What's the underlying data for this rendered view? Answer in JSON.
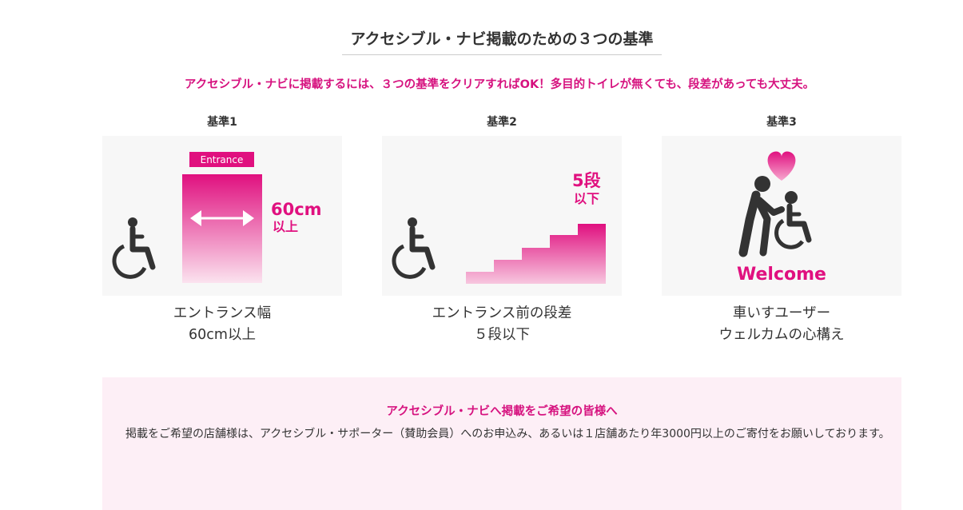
{
  "section": {
    "title": "アクセシブル・ナビ掲載のための３つの基準",
    "lead": "アクセシブル・ナビに掲載するには、３つの基準をクリアすればOK！多目的トイレが無くても、段差があっても大丈夫。"
  },
  "criteria": [
    {
      "label": "基準1",
      "graphic": {
        "badge": "Entrance",
        "measure_value": "60cm",
        "measure_suffix": "以上",
        "icon": "wheelchair-icon"
      },
      "caption": [
        "エントランス幅",
        "60cm以上"
      ]
    },
    {
      "label": "基準2",
      "graphic": {
        "measure_value": "5段",
        "measure_suffix": "以下",
        "icon": "wheelchair-icon"
      },
      "caption": [
        "エントランス前の段差",
        "５段以下"
      ]
    },
    {
      "label": "基準3",
      "graphic": {
        "badge": "Welcome",
        "icon": "caregiver-with-wheelchair-icon"
      },
      "caption": [
        "車いすユーザー",
        "ウェルカムの心構え"
      ]
    }
  ],
  "info": {
    "title": "アクセシブル・ナビへ掲載をご希望の皆様へ",
    "body": "掲載をご希望の店舗様は、アクセシブル・サポーター（賛助会員）へのお申込み、あるいは１店舗あたり年3000円以上のご寄付をお願いしております。"
  },
  "colors": {
    "accent": "#d6127f",
    "icon": "#333333",
    "panel_bg": "#f7f7f7",
    "info_bg": "#fdeff6"
  }
}
